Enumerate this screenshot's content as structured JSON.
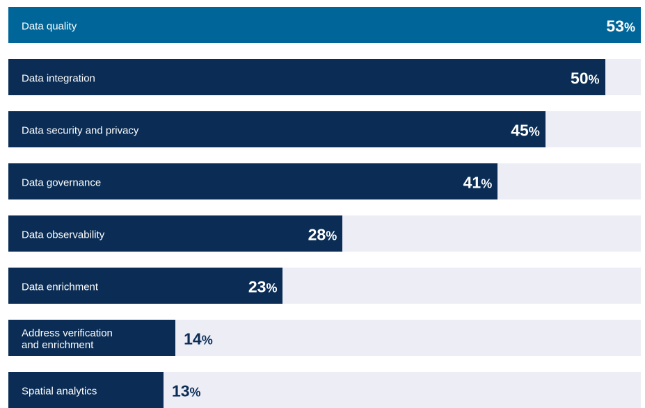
{
  "chart_data": {
    "type": "bar",
    "orientation": "horizontal",
    "categories": [
      "Data quality",
      "Data integration",
      "Data security and privacy",
      "Data governance",
      "Data observability",
      "Data enrichment",
      "Address verification\nand enrichment",
      "Spatial analytics"
    ],
    "values": [
      53,
      50,
      45,
      41,
      28,
      23,
      14,
      13
    ],
    "value_suffix": "%",
    "xlim": [
      0,
      53
    ],
    "highlight_index": 0,
    "colors": {
      "highlight_bar": "#006699",
      "bar": "#0b2d55",
      "track": "#ededf6",
      "value_on_bar": "#ffffff",
      "value_off_bar": "#0b2d55",
      "label": "#ffffff"
    },
    "title": "",
    "xlabel": "",
    "ylabel": "",
    "grid": false
  }
}
